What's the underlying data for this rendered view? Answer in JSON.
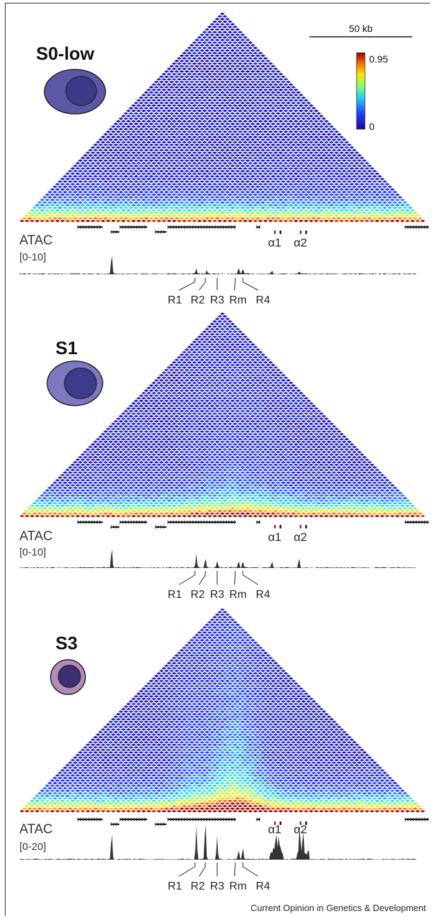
{
  "scale_bar": {
    "label": "50 kb"
  },
  "colorbar": {
    "max_label": "0.95",
    "min_label": "0",
    "colors": [
      "#1a0aa8",
      "#1e3cff",
      "#22c8ff",
      "#7dff7a",
      "#ffe600",
      "#ff6a00",
      "#9a0000"
    ]
  },
  "credit": "Current Opinion in Genetics & Development",
  "panels": [
    {
      "stage": "S0-low",
      "atac_label": "ATAC",
      "atac_range": "[0-10]",
      "cell": {
        "outer_color": "#5d58a6",
        "inner_color": "#3d3a8a"
      },
      "alpha_labels": [
        "α1",
        "α2"
      ],
      "regions": [
        "R1",
        "R2",
        "R3",
        "Rm",
        "R4"
      ]
    },
    {
      "stage": "S1",
      "atac_label": "ATAC",
      "atac_range": "[0-10]",
      "cell": {
        "outer_color": "#7d78c0",
        "inner_color": "#3e3a8c"
      },
      "alpha_labels": [
        "α1",
        "α2"
      ],
      "regions": [
        "R1",
        "R2",
        "R3",
        "Rm",
        "R4"
      ]
    },
    {
      "stage": "S3",
      "atac_label": "ATAC",
      "atac_range": "[0-20]",
      "cell": {
        "outer_color": "#b48ab8",
        "inner_color": "#3e2f72"
      },
      "alpha_labels": [
        "α1",
        "α2"
      ],
      "regions": [
        "R1",
        "R2",
        "R3",
        "Rm",
        "R4"
      ]
    }
  ]
}
